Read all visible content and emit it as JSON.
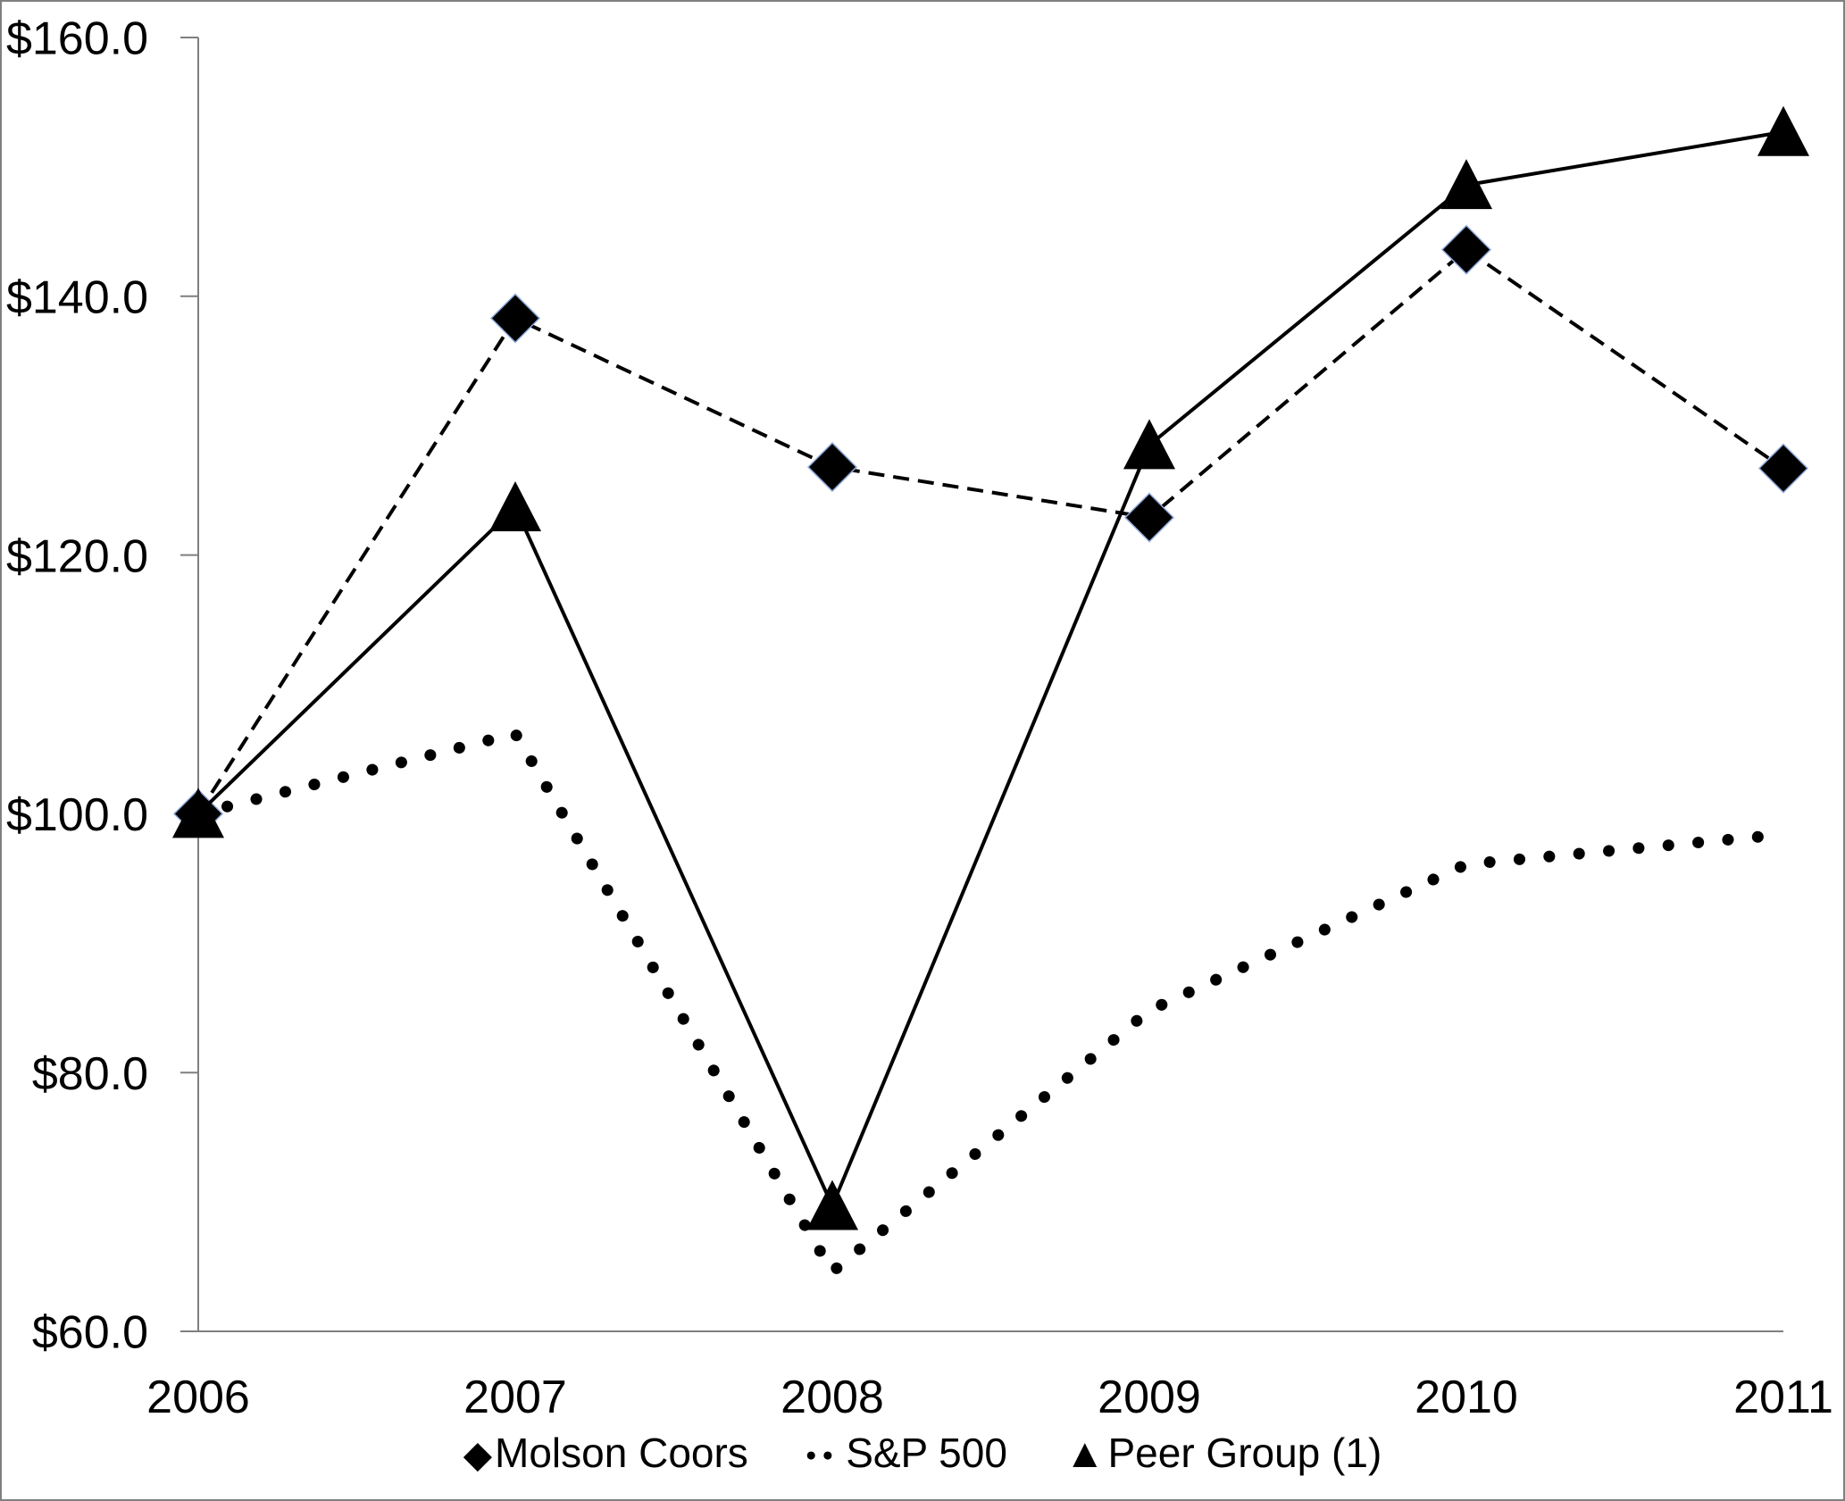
{
  "chart_data": {
    "type": "line",
    "title": "",
    "xlabel": "",
    "ylabel": "",
    "categories": [
      "2006",
      "2007",
      "2008",
      "2009",
      "2010",
      "2011"
    ],
    "series": [
      {
        "name": "Molson Coors",
        "marker": "diamond",
        "line_style": "dashed",
        "values": [
          100.0,
          138.3,
          126.8,
          122.9,
          143.6,
          126.7
        ]
      },
      {
        "name": "S&P 500",
        "marker": "dot",
        "line_style": "dotted",
        "values": [
          100.0,
          106.2,
          64.6,
          84.8,
          96.1,
          98.4
        ]
      },
      {
        "name": "Peer Group (1)",
        "marker": "triangle",
        "line_style": "solid",
        "values": [
          100.0,
          123.7,
          69.7,
          128.5,
          148.6,
          152.7
        ]
      }
    ],
    "y_ticks": {
      "values": [
        60,
        80,
        100,
        120,
        140,
        160
      ],
      "labels": [
        "$60.0",
        "$80.0",
        "$100.0",
        "$120.0",
        "$140.0",
        "$160.0"
      ]
    },
    "ylim": [
      60,
      160
    ],
    "grid": false,
    "legend_position": "bottom",
    "colors": {
      "series": "#000000",
      "axis": "#7f7f7f",
      "text": "#000000",
      "diamond_edge": "#8faadc"
    }
  },
  "legend": {
    "items": [
      {
        "icon": "diamond-icon",
        "glyph": "◆",
        "label": "Molson Coors"
      },
      {
        "icon": "dots-icon",
        "glyph": "●●",
        "label": "S&P 500"
      },
      {
        "icon": "triangle-icon",
        "glyph": "▲",
        "label": "Peer Group (1)"
      }
    ]
  }
}
